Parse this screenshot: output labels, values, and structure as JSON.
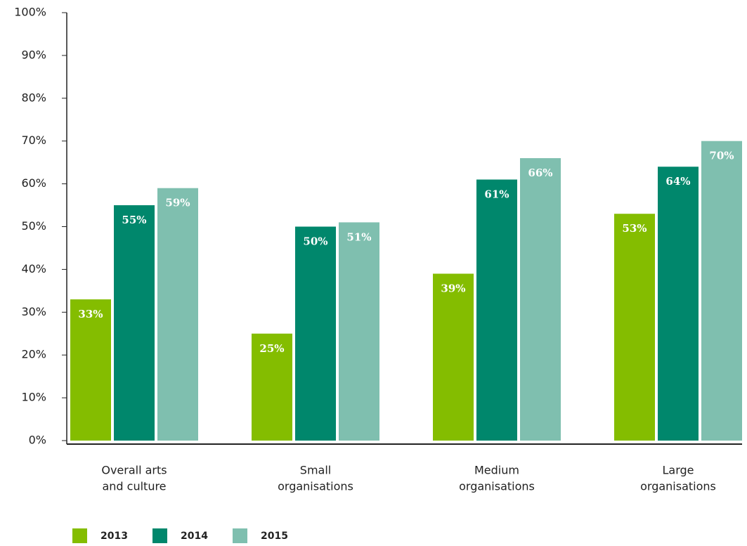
{
  "chart_data": {
    "type": "bar",
    "categories": [
      [
        "Overall arts",
        "and culture"
      ],
      [
        "Small",
        "organisations"
      ],
      [
        "Medium",
        "organisations"
      ],
      [
        "Large",
        "organisations"
      ]
    ],
    "series": [
      {
        "name": "2013",
        "color": "#84bd00",
        "values": [
          33,
          25,
          39,
          53
        ],
        "value_labels": [
          "33%",
          "25%",
          "39%",
          "53%"
        ]
      },
      {
        "name": "2014",
        "color": "#00876c",
        "values": [
          55,
          50,
          61,
          64
        ],
        "value_labels": [
          "55%",
          "50%",
          "61%",
          "64%"
        ]
      },
      {
        "name": "2015",
        "color": "#7fbfaf",
        "values": [
          59,
          51,
          66,
          70
        ],
        "value_labels": [
          "59%",
          "51%",
          "66%",
          "70%"
        ]
      }
    ],
    "ylim": [
      0,
      100
    ],
    "yticks": [
      {
        "value": 0,
        "label": "0%"
      },
      {
        "value": 10,
        "label": "10%"
      },
      {
        "value": 20,
        "label": "20%"
      },
      {
        "value": 30,
        "label": "30%"
      },
      {
        "value": 40,
        "label": "40%"
      },
      {
        "value": 50,
        "label": "50%"
      },
      {
        "value": 60,
        "label": "60%"
      },
      {
        "value": 70,
        "label": "70%"
      },
      {
        "value": 80,
        "label": "80%"
      },
      {
        "value": 90,
        "label": "90%"
      },
      {
        "value": 100,
        "label": "100%"
      }
    ],
    "grid": false
  }
}
